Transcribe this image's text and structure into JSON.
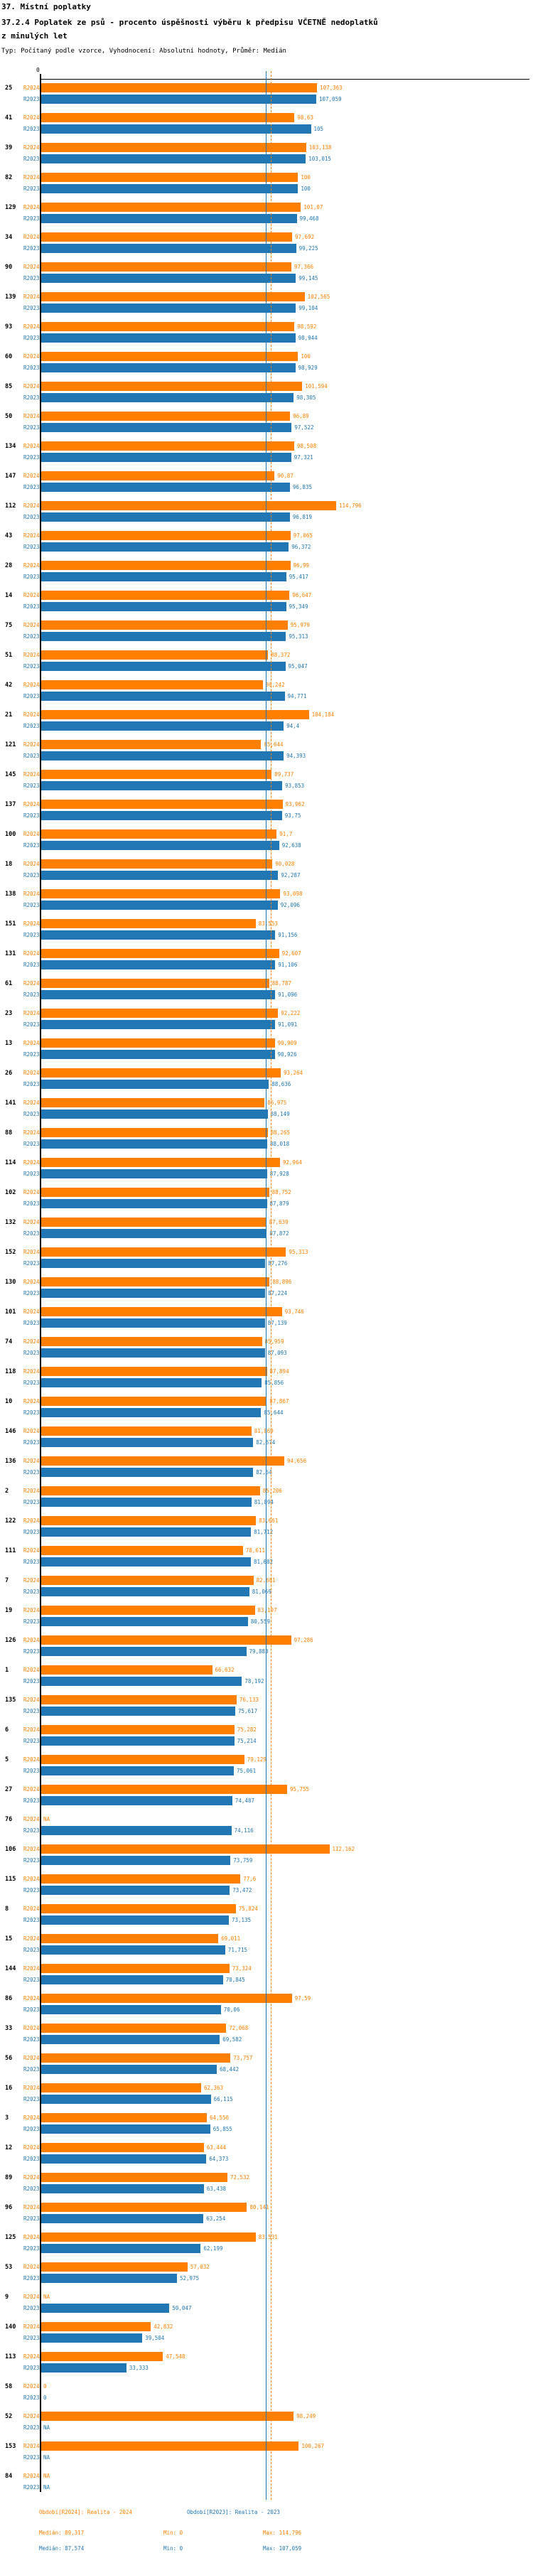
{
  "header": {
    "title_line1": "37. Místní poplatky",
    "title_line2": "37.2.4 Poplatek ze psů - procento úspěšnosti výběru k předpisu VČETNĚ nedoplatků",
    "title_line3": "z minulých let",
    "subtitle": "Typ: Počítaný podle vzorce, Vyhodnocení: Absolutní hodnoty, Průměr: Medián"
  },
  "colors": {
    "r2024": "#ff8000",
    "r2023": "#2077b4",
    "axis": "#000000"
  },
  "axis": {
    "zero_label": "0"
  },
  "legend": {
    "period_r2024": "Období[R2024]: Realita - 2024",
    "period_r2023": "Období[R2023]: Realita - 2023",
    "median_r2024": "Medián: 89,317",
    "min_r2024": "Min: 0",
    "max_r2024": "Max: 114,796",
    "median_r2023": "Medián: 87,574",
    "min_r2023": "Min: 0",
    "max_r2023": "Max: 107,059"
  },
  "chart_data": {
    "type": "bar",
    "orientation": "horizontal",
    "title": "37.2.4 Poplatek ze psů - procento úspěšnosti výběru k předpisu VČETNĚ nedoplatků z minulých let",
    "series_names": [
      "R2024",
      "R2023"
    ],
    "na_text": "NA",
    "x_axis": {
      "min": 0,
      "tick_labels": [
        "0"
      ],
      "grid": false
    },
    "legend_position": "bottom",
    "medians": {
      "R2024": 89.317,
      "R2023": 87.574
    },
    "stats": {
      "R2024": {
        "min": 0,
        "max": 114.796
      },
      "R2023": {
        "min": 0,
        "max": 107.059
      }
    },
    "rows": [
      {
        "id": "25",
        "R2024": 107.363,
        "R2023": 107.059
      },
      {
        "id": "41",
        "R2024": 98.63,
        "R2023": 105
      },
      {
        "id": "39",
        "R2024": 103.138,
        "R2023": 103.015
      },
      {
        "id": "82",
        "R2024": 100,
        "R2023": 100
      },
      {
        "id": "129",
        "R2024": 101.07,
        "R2023": 99.468
      },
      {
        "id": "34",
        "R2024": 97.692,
        "R2023": 99.225
      },
      {
        "id": "90",
        "R2024": 97.366,
        "R2023": 99.145
      },
      {
        "id": "139",
        "R2024": 102.565,
        "R2023": 99.104
      },
      {
        "id": "93",
        "R2024": 98.592,
        "R2023": 98.944
      },
      {
        "id": "60",
        "R2024": 100,
        "R2023": 98.929
      },
      {
        "id": "85",
        "R2024": 101.594,
        "R2023": 98.305
      },
      {
        "id": "50",
        "R2024": 96.89,
        "R2023": 97.522
      },
      {
        "id": "134",
        "R2024": 98.508,
        "R2023": 97.321
      },
      {
        "id": "147",
        "R2024": 90.87,
        "R2023": 96.835
      },
      {
        "id": "112",
        "R2024": 114.796,
        "R2023": 96.819
      },
      {
        "id": "43",
        "R2024": 97.065,
        "R2023": 96.372
      },
      {
        "id": "28",
        "R2024": 96.99,
        "R2023": 95.417
      },
      {
        "id": "14",
        "R2024": 96.647,
        "R2023": 95.349
      },
      {
        "id": "75",
        "R2024": 95.979,
        "R2023": 95.313
      },
      {
        "id": "51",
        "R2024": 88.372,
        "R2023": 95.047
      },
      {
        "id": "42",
        "R2024": 86.242,
        "R2023": 94.771
      },
      {
        "id": "21",
        "R2024": 104.184,
        "R2023": 94.4
      },
      {
        "id": "121",
        "R2024": 85.644,
        "R2023": 94.393
      },
      {
        "id": "145",
        "R2024": 89.737,
        "R2023": 93.853
      },
      {
        "id": "137",
        "R2024": 93.962,
        "R2023": 93.75
      },
      {
        "id": "100",
        "R2024": 91.7,
        "R2023": 92.638
      },
      {
        "id": "18",
        "R2024": 90.028,
        "R2023": 92.287
      },
      {
        "id": "138",
        "R2024": 93.098,
        "R2023": 92.096
      },
      {
        "id": "151",
        "R2024": 83.553,
        "R2023": 91.156
      },
      {
        "id": "131",
        "R2024": 92.607,
        "R2023": 91.106
      },
      {
        "id": "61",
        "R2024": 88.787,
        "R2023": 91.096
      },
      {
        "id": "23",
        "R2024": 92.222,
        "R2023": 91.091
      },
      {
        "id": "13",
        "R2024": 90.909,
        "R2023": 90.926
      },
      {
        "id": "26",
        "R2024": 93.264,
        "R2023": 88.636
      },
      {
        "id": "141",
        "R2024": 86.975,
        "R2023": 88.149
      },
      {
        "id": "88",
        "R2024": 88.265,
        "R2023": 88.018
      },
      {
        "id": "114",
        "R2024": 92.964,
        "R2023": 87.928
      },
      {
        "id": "102",
        "R2024": 88.752,
        "R2023": 87.879
      },
      {
        "id": "132",
        "R2024": 87.639,
        "R2023": 87.872
      },
      {
        "id": "152",
        "R2024": 95.313,
        "R2023": 87.276
      },
      {
        "id": "130",
        "R2024": 88.896,
        "R2023": 87.224
      },
      {
        "id": "101",
        "R2024": 93.746,
        "R2023": 87.139
      },
      {
        "id": "74",
        "R2024": 85.959,
        "R2023": 87.093
      },
      {
        "id": "118",
        "R2024": 87.894,
        "R2023": 85.856
      },
      {
        "id": "10",
        "R2024": 87.867,
        "R2023": 85.644
      },
      {
        "id": "146",
        "R2024": 81.869,
        "R2023": 82.574
      },
      {
        "id": "136",
        "R2024": 94.656,
        "R2023": 82.54
      },
      {
        "id": "2",
        "R2024": 85.206,
        "R2023": 81.894
      },
      {
        "id": "122",
        "R2024": 83.661,
        "R2023": 81.712
      },
      {
        "id": "111",
        "R2024": 78.611,
        "R2023": 81.682
      },
      {
        "id": "7",
        "R2024": 82.681,
        "R2023": 81.069
      },
      {
        "id": "19",
        "R2024": 83.197,
        "R2023": 80.559
      },
      {
        "id": "126",
        "R2024": 97.286,
        "R2023": 79.883
      },
      {
        "id": "1",
        "R2024": 66.632,
        "R2023": 78.192
      },
      {
        "id": "135",
        "R2024": 76.133,
        "R2023": 75.617
      },
      {
        "id": "6",
        "R2024": 75.282,
        "R2023": 75.214
      },
      {
        "id": "5",
        "R2024": 79.129,
        "R2023": 75.061
      },
      {
        "id": "27",
        "R2024": 95.755,
        "R2023": 74.487
      },
      {
        "id": "76",
        "R2024": null,
        "R2023": 74.116
      },
      {
        "id": "106",
        "R2024": 112.162,
        "R2023": 73.759
      },
      {
        "id": "115",
        "R2024": 77.6,
        "R2023": 73.472
      },
      {
        "id": "8",
        "R2024": 75.824,
        "R2023": 73.135
      },
      {
        "id": "15",
        "R2024": 69.011,
        "R2023": 71.715
      },
      {
        "id": "144",
        "R2024": 73.324,
        "R2023": 70.845
      },
      {
        "id": "86",
        "R2024": 97.59,
        "R2023": 70.06
      },
      {
        "id": "33",
        "R2024": 72.068,
        "R2023": 69.582
      },
      {
        "id": "56",
        "R2024": 73.757,
        "R2023": 68.442
      },
      {
        "id": "16",
        "R2024": 62.363,
        "R2023": 66.115
      },
      {
        "id": "3",
        "R2024": 64.556,
        "R2023": 65.855
      },
      {
        "id": "12",
        "R2024": 63.444,
        "R2023": 64.373
      },
      {
        "id": "89",
        "R2024": 72.532,
        "R2023": 63.438
      },
      {
        "id": "96",
        "R2024": 80.141,
        "R2023": 63.254
      },
      {
        "id": "125",
        "R2024": 83.531,
        "R2023": 62.199
      },
      {
        "id": "53",
        "R2024": 57.032,
        "R2023": 52.975
      },
      {
        "id": "9",
        "R2024": null,
        "R2023": 50.047
      },
      {
        "id": "140",
        "R2024": 42.832,
        "R2023": 39.504
      },
      {
        "id": "113",
        "R2024": 47.548,
        "R2023": 33.333
      },
      {
        "id": "58",
        "R2024": 0,
        "R2023": 0
      },
      {
        "id": "52",
        "R2024": 98.249,
        "R2023": null
      },
      {
        "id": "153",
        "R2024": 100.267,
        "R2023": null
      },
      {
        "id": "84",
        "R2024": null,
        "R2023": null
      }
    ]
  }
}
